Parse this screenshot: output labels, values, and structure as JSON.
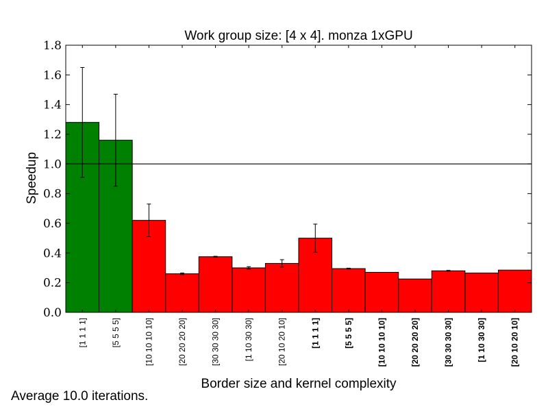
{
  "chart_data": {
    "type": "bar",
    "title": "Work group size: [4 x 4]. monza 1xGPU",
    "xlabel": "Border size and kernel complexity",
    "ylabel": "Speedup",
    "ylim": [
      0.0,
      1.8
    ],
    "yticks": [
      "0.0",
      "0.2",
      "0.4",
      "0.6",
      "0.8",
      "1.0",
      "1.2",
      "1.4",
      "1.6",
      "1.8"
    ],
    "reference_line": 1.0,
    "grid": false,
    "categories": [
      "[1 1 1 1]",
      "[5 5 5 5]",
      "[10 10 10 10]",
      "[20 20 20 20]",
      "[30 30 30 30]",
      "[1 10 30 30]",
      "[20 10 20 10]",
      "[1 1 1 1]",
      "[5 5 5 5]",
      "[10 10 10 10]",
      "[20 20 20 20]",
      "[30 30 30 30]",
      "[1 10 30 30]",
      "[20 10 20 10]"
    ],
    "category_bold": [
      false,
      false,
      false,
      false,
      false,
      false,
      false,
      true,
      true,
      true,
      true,
      true,
      true,
      true
    ],
    "values": [
      1.28,
      1.16,
      0.62,
      0.26,
      0.375,
      0.3,
      0.33,
      0.5,
      0.295,
      0.27,
      0.225,
      0.28,
      0.265,
      0.285
    ],
    "errors": [
      0.37,
      0.31,
      0.11,
      0.005,
      0.003,
      0.008,
      0.025,
      0.095,
      0.003,
      0.0,
      0.0,
      0.003,
      0.0,
      0.0
    ],
    "colors": [
      "#008000",
      "#008000",
      "#ff0000",
      "#ff0000",
      "#ff0000",
      "#ff0000",
      "#ff0000",
      "#ff0000",
      "#ff0000",
      "#ff0000",
      "#ff0000",
      "#ff0000",
      "#ff0000",
      "#ff0000"
    ]
  },
  "footnote": "Average 10.0 iterations."
}
